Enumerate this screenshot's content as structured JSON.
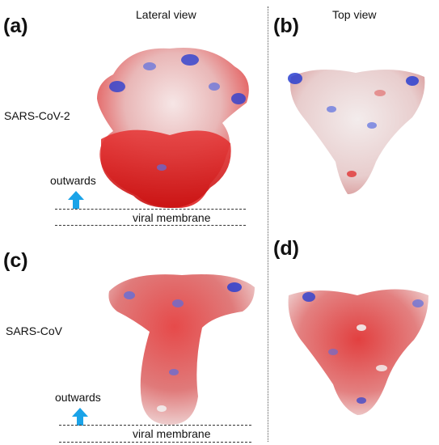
{
  "panels": {
    "a": {
      "letter": "(a)"
    },
    "b": {
      "letter": "(b)"
    },
    "c": {
      "letter": "(c)"
    },
    "d": {
      "letter": "(d)"
    }
  },
  "columns": {
    "lateral_title": "Lateral view",
    "top_title": "Top view"
  },
  "rows": {
    "row1_label": "SARS-CoV-2",
    "row2_label": "SARS-CoV"
  },
  "annotations": {
    "outwards_1": "outwards",
    "membrane_1": "viral membrane",
    "outwards_2": "outwards",
    "membrane_2": "viral membrane"
  },
  "colors": {
    "positive": "#2a3fd0",
    "neutral": "#f2eeee",
    "negative": "#e01818",
    "arrow": "#1aa3e8"
  }
}
